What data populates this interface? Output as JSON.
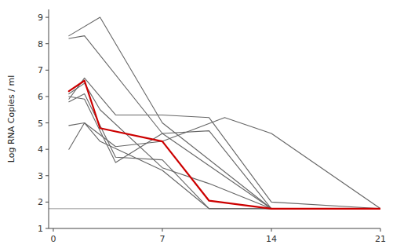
{
  "chart_data": {
    "type": "line",
    "ylabel": "Log RNA Copies / ml",
    "xlim": [
      -0.3,
      21
    ],
    "ylim": [
      1,
      9.3
    ],
    "xticks": [
      0,
      7,
      14,
      21
    ],
    "yticks": [
      1,
      2,
      3,
      4,
      5,
      6,
      7,
      8,
      9
    ],
    "grid": false,
    "hlines": [
      {
        "y": 1.75,
        "color": "#bbbbbb"
      }
    ],
    "series": [
      {
        "x": [
          1,
          3,
          7,
          14,
          21
        ],
        "values": [
          8.3,
          9.0,
          5.0,
          1.75,
          1.75
        ],
        "color": "#666666"
      },
      {
        "x": [
          1,
          2,
          7,
          14,
          21
        ],
        "values": [
          8.2,
          8.3,
          4.6,
          1.75,
          1.75
        ],
        "color": "#666666"
      },
      {
        "x": [
          1,
          2,
          4,
          7,
          10,
          14,
          21
        ],
        "values": [
          5.9,
          6.7,
          5.3,
          5.3,
          5.2,
          2.0,
          1.75
        ],
        "color": "#666666"
      },
      {
        "x": [
          1,
          2,
          4,
          7,
          10,
          14,
          21
        ],
        "values": [
          6.0,
          5.9,
          3.5,
          4.6,
          4.7,
          1.75,
          1.75
        ],
        "color": "#666666"
      },
      {
        "x": [
          1,
          2,
          4,
          7,
          10,
          14,
          21
        ],
        "values": [
          5.8,
          6.1,
          3.7,
          3.6,
          1.75,
          1.75,
          1.75
        ],
        "color": "#666666"
      },
      {
        "x": [
          1,
          2,
          4,
          7,
          11,
          14,
          21
        ],
        "values": [
          4.9,
          5.0,
          4.1,
          4.3,
          5.2,
          4.6,
          1.75
        ],
        "color": "#666666"
      },
      {
        "x": [
          1,
          2,
          3,
          7,
          10,
          14,
          21
        ],
        "values": [
          6.1,
          6.5,
          5.5,
          3.3,
          2.7,
          1.75,
          1.75
        ],
        "color": "#666666"
      },
      {
        "x": [
          1,
          2,
          3,
          7,
          10,
          14,
          21
        ],
        "values": [
          4.0,
          5.0,
          4.3,
          3.2,
          1.75,
          1.75,
          1.75
        ],
        "color": "#666666"
      },
      {
        "x": [
          1,
          2,
          3,
          7,
          10,
          14,
          21
        ],
        "values": [
          6.2,
          6.6,
          4.8,
          4.3,
          2.05,
          1.75,
          1.75
        ],
        "color": "#cc0000"
      }
    ]
  }
}
